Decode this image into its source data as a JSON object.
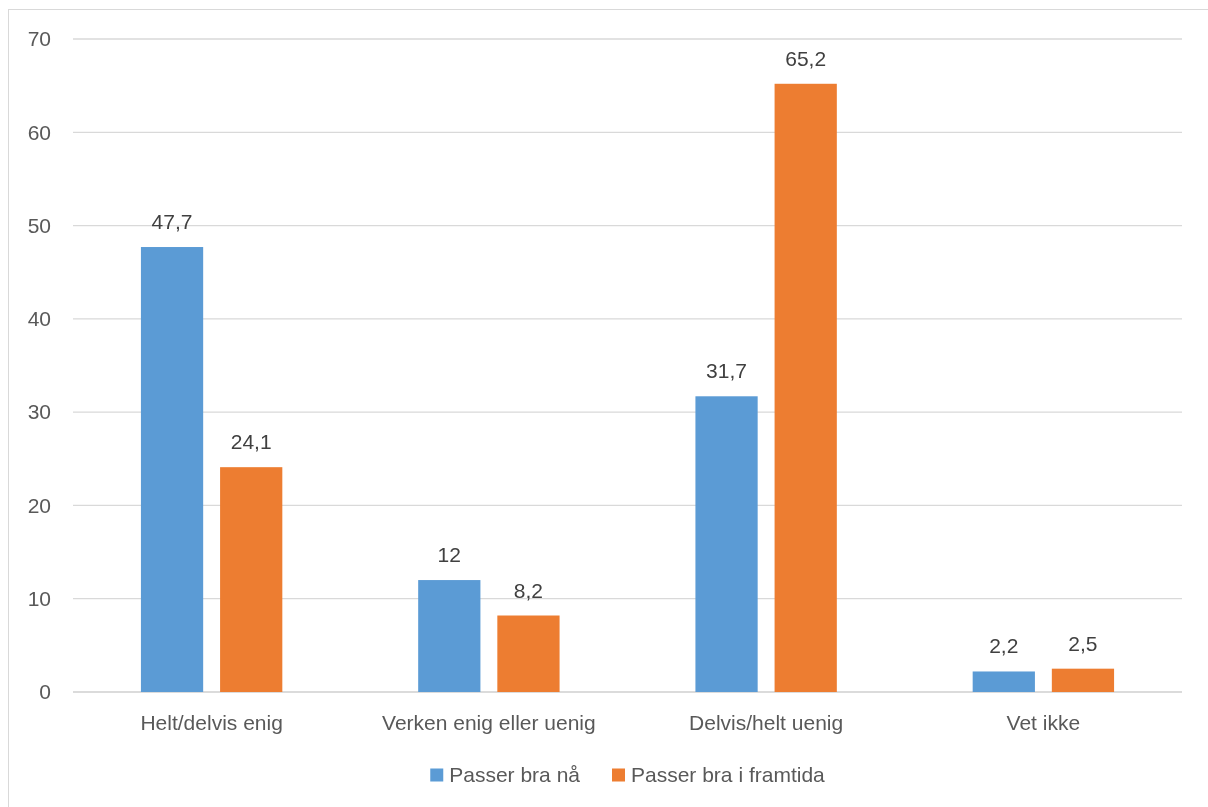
{
  "chart_data": {
    "type": "bar",
    "categories": [
      "Helt/delvis enig",
      "Verken enig eller uenig",
      "Delvis/helt uenig",
      "Vet ikke"
    ],
    "series": [
      {
        "name": "Passer bra nå",
        "color": "#5b9bd5",
        "values": [
          47.7,
          12,
          31.7,
          2.2
        ],
        "value_labels": [
          "47,7",
          "12",
          "31,7",
          "2,2"
        ]
      },
      {
        "name": "Passer bra i framtida",
        "color": "#ed7d31",
        "values": [
          24.1,
          8.2,
          65.2,
          2.5
        ],
        "value_labels": [
          "24,1",
          "8,2",
          "65,2",
          "2,5"
        ]
      }
    ],
    "ylim": [
      0,
      70
    ],
    "yticks": [
      0,
      10,
      20,
      30,
      40,
      50,
      60,
      70
    ],
    "grid": "y",
    "legend": "bottom"
  }
}
